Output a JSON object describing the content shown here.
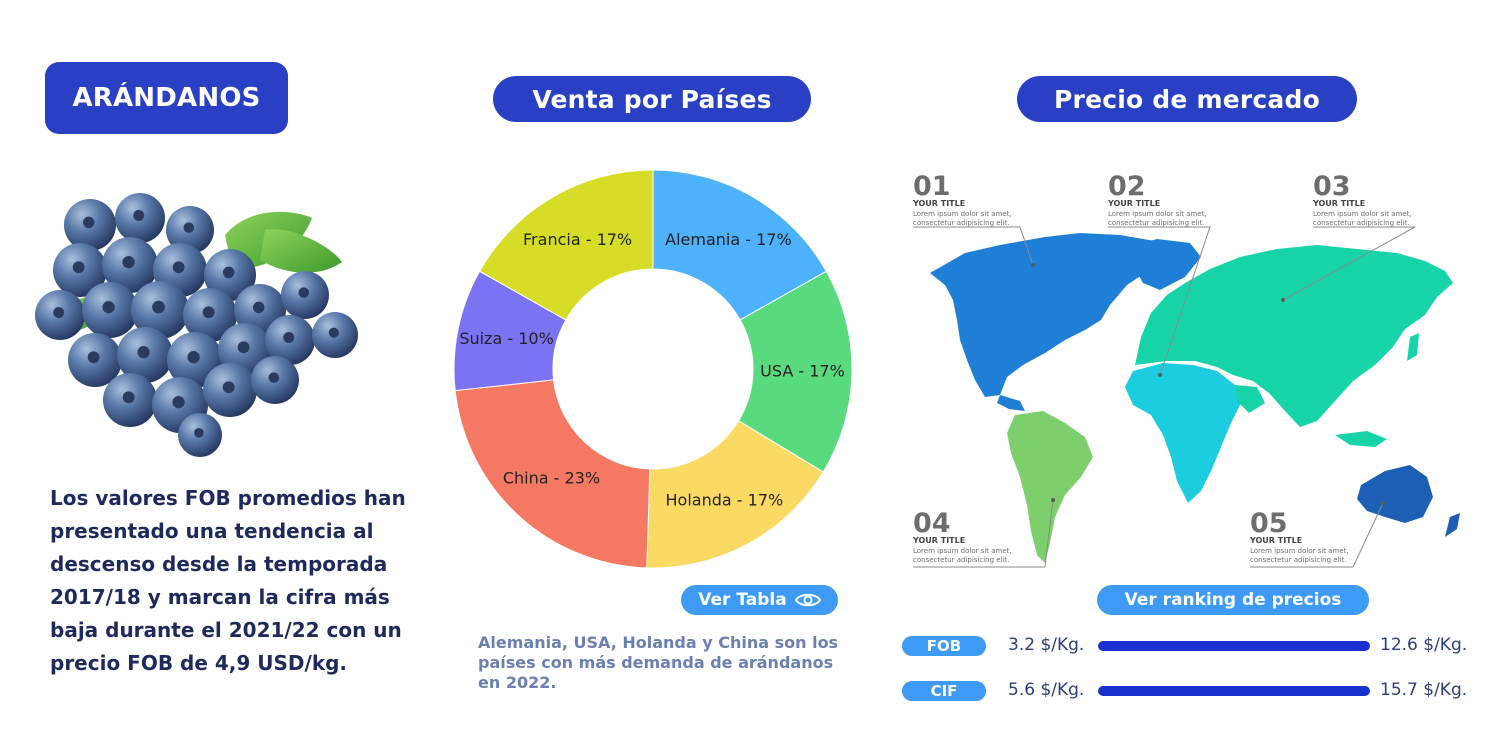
{
  "titles": {
    "left": "ARÁNDANOS",
    "middle": "Venta por Países",
    "right": "Precio de mercado"
  },
  "left": {
    "description": "Los valores FOB promedios han presentado una tendencia al descenso desde la temporada 2017/18 y marcan la cifra más baja durante el 2021/22 con un precio FOB de 4,9 USD/kg."
  },
  "middle": {
    "button_label": "Ver Tabla",
    "button_icon": "eye-icon",
    "description": "Alemania, USA, Holanda y China son los países con más demanda de arándanos en 2022."
  },
  "chart_data": {
    "type": "pie",
    "variant": "donut",
    "title": "Venta por Países",
    "slices": [
      {
        "label": "Alemania - 17%",
        "name": "Alemania",
        "value": 17,
        "color": "#4db1fb"
      },
      {
        "label": "USA - 17%",
        "name": "USA",
        "value": 17,
        "color": "#59da7e"
      },
      {
        "label": "Holanda - 17%",
        "name": "Holanda",
        "value": 17,
        "color": "#fbda63"
      },
      {
        "label": "China - 23%",
        "name": "China",
        "value": 23,
        "color": "#f47862"
      },
      {
        "label": "Suiza - 10%",
        "name": "Suiza",
        "value": 10,
        "color": "#7b73f4"
      },
      {
        "label": "Francia - 17%",
        "name": "Francia",
        "value": 17,
        "color": "#d7dd27"
      }
    ]
  },
  "map": {
    "callouts": [
      {
        "number": "01",
        "title": "YOUR TITLE",
        "text1": "Lorem ipsum dolor sit amet,",
        "text2": "consectetur adipisicing elit."
      },
      {
        "number": "02",
        "title": "YOUR TITLE",
        "text1": "Lorem ipsum dolor sit amet,",
        "text2": "consectetur adipisicing elit."
      },
      {
        "number": "03",
        "title": "YOUR TITLE",
        "text1": "Lorem ipsum dolor sit amet,",
        "text2": "consectetur adipisicing elit."
      },
      {
        "number": "04",
        "title": "YOUR TITLE",
        "text1": "Lorem ipsum dolor sit amet,",
        "text2": "consectetur adipisicing elit."
      },
      {
        "number": "05",
        "title": "YOUR TITLE",
        "text1": "Lorem ipsum dolor sit amet,",
        "text2": "consectetur adipisicing elit."
      }
    ],
    "colors": {
      "north_america": "#1f7fd6",
      "south_america": "#7dcf6b",
      "africa": "#1ccde0",
      "eurasia": "#17d3a8",
      "oceania": "#1c5fb5"
    }
  },
  "ranking": {
    "button_label": "Ver ranking de precios",
    "rows": [
      {
        "tag": "FOB",
        "low": "3.2 $/Kg.",
        "high": "12.6 $/Kg."
      },
      {
        "tag": "CIF",
        "low": "5.6 $/Kg.",
        "high": "15.7 $/Kg."
      }
    ]
  },
  "colors": {
    "primary": "#2940c4",
    "accent": "#3d9bf5",
    "bar": "#1a2fd0"
  }
}
